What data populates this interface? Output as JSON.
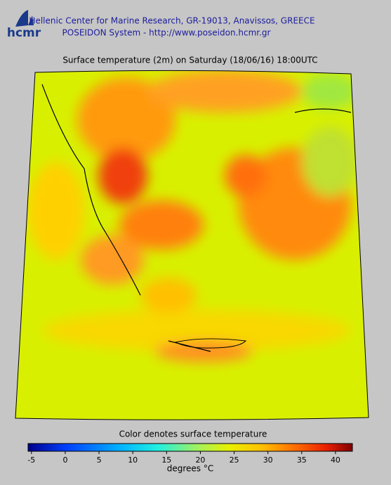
{
  "header": {
    "logo": "hcmr",
    "line1": "Hellenic Center for Marine Research, GR-19013, Anavissos, GREECE",
    "line2": "POSEIDON System - http://www.poseidon.hcmr.gr"
  },
  "map": {
    "title": "Surface temperature (2m) on Saturday (18/06/16) 18:00UTC"
  },
  "colorbar": {
    "caption": "Color denotes surface temperature",
    "range": [
      -5.5,
      42.5
    ],
    "ticks": [
      -5,
      0,
      5,
      10,
      15,
      20,
      25,
      30,
      35,
      40
    ],
    "label": "degrees °C"
  }
}
